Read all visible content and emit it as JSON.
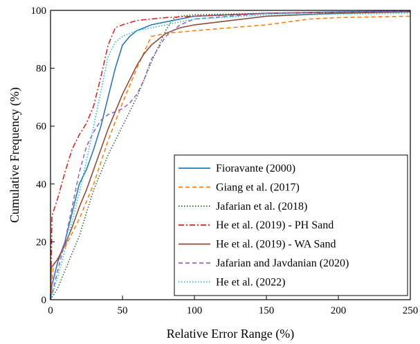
{
  "chart_data": {
    "type": "line",
    "title": "",
    "xlabel": "Relative Error Range (%)",
    "ylabel": "Cumulative Frequency (%)",
    "xlim": [
      0,
      250
    ],
    "ylim": [
      0,
      100
    ],
    "xticks": [
      "0",
      "50",
      "100",
      "150",
      "200",
      "250"
    ],
    "yticks": [
      "0",
      "20",
      "40",
      "60",
      "80",
      "100"
    ],
    "grid": false,
    "legend_position": "bottom-right",
    "series": [
      {
        "name": "Fioravante (2000)",
        "color": "#2e75b6",
        "dash": "solid",
        "points": [
          [
            0,
            0
          ],
          [
            1,
            5
          ],
          [
            5,
            13
          ],
          [
            10,
            20
          ],
          [
            15,
            30
          ],
          [
            20,
            40
          ],
          [
            25,
            45
          ],
          [
            30,
            52
          ],
          [
            35,
            60
          ],
          [
            40,
            70
          ],
          [
            45,
            80
          ],
          [
            50,
            88
          ],
          [
            55,
            91
          ],
          [
            60,
            93
          ],
          [
            65,
            94
          ],
          [
            70,
            95
          ],
          [
            80,
            96
          ],
          [
            100,
            98
          ],
          [
            150,
            99
          ],
          [
            200,
            99.5
          ],
          [
            250,
            99.8
          ]
        ]
      },
      {
        "name": "Giang et al. (2017)",
        "color": "#ff7f0e",
        "dash": "dashed",
        "points": [
          [
            0,
            0
          ],
          [
            2,
            12
          ],
          [
            10,
            18
          ],
          [
            20,
            28
          ],
          [
            30,
            40
          ],
          [
            40,
            55
          ],
          [
            50,
            68
          ],
          [
            60,
            80
          ],
          [
            70,
            91
          ],
          [
            80,
            92
          ],
          [
            100,
            93
          ],
          [
            150,
            95
          ],
          [
            180,
            97
          ],
          [
            200,
            97.5
          ],
          [
            250,
            98
          ]
        ]
      },
      {
        "name": "Jafarian et al. (2018)",
        "color": "#2e6b30",
        "dash": "dotted",
        "points": [
          [
            0,
            0
          ],
          [
            5,
            4
          ],
          [
            10,
            10
          ],
          [
            20,
            22
          ],
          [
            30,
            38
          ],
          [
            40,
            50
          ],
          [
            50,
            60
          ],
          [
            60,
            70
          ],
          [
            70,
            82
          ],
          [
            80,
            93
          ],
          [
            85,
            97
          ],
          [
            90,
            98
          ],
          [
            100,
            98.5
          ],
          [
            150,
            99
          ],
          [
            250,
            99.5
          ]
        ]
      },
      {
        "name": "He et al. (2019) - PH Sand",
        "color": "#d62728",
        "dash": "dashdot",
        "points": [
          [
            0,
            0
          ],
          [
            1,
            29
          ],
          [
            5,
            35
          ],
          [
            10,
            44
          ],
          [
            15,
            52
          ],
          [
            20,
            57
          ],
          [
            25,
            61
          ],
          [
            30,
            67
          ],
          [
            35,
            77
          ],
          [
            40,
            88
          ],
          [
            45,
            94
          ],
          [
            50,
            95
          ],
          [
            60,
            96.5
          ],
          [
            80,
            97.5
          ],
          [
            100,
            98
          ],
          [
            150,
            99
          ],
          [
            250,
            99.5
          ]
        ]
      },
      {
        "name": "He et al. (2019) - WA Sand",
        "color": "#8b4c3c",
        "dash": "solid",
        "points": [
          [
            0,
            0
          ],
          [
            0.5,
            11
          ],
          [
            5,
            14
          ],
          [
            10,
            19
          ],
          [
            15,
            25
          ],
          [
            20,
            32
          ],
          [
            25,
            38
          ],
          [
            30,
            45
          ],
          [
            35,
            52
          ],
          [
            40,
            59
          ],
          [
            45,
            65
          ],
          [
            50,
            71
          ],
          [
            55,
            76
          ],
          [
            60,
            81
          ],
          [
            65,
            85
          ],
          [
            70,
            88
          ],
          [
            80,
            92
          ],
          [
            90,
            94
          ],
          [
            100,
            95
          ],
          [
            150,
            98
          ],
          [
            200,
            99
          ],
          [
            250,
            99.5
          ]
        ]
      },
      {
        "name": "Jafarian and Javdanian (2020)",
        "color": "#9467bd",
        "dash": "dashed",
        "points": [
          [
            0,
            0
          ],
          [
            5,
            10
          ],
          [
            10,
            20
          ],
          [
            15,
            32
          ],
          [
            20,
            44
          ],
          [
            25,
            53
          ],
          [
            30,
            58
          ],
          [
            35,
            62
          ],
          [
            40,
            64
          ],
          [
            45,
            65
          ],
          [
            50,
            66
          ],
          [
            55,
            68
          ],
          [
            60,
            71
          ],
          [
            65,
            76
          ],
          [
            70,
            83
          ],
          [
            80,
            91
          ],
          [
            90,
            95
          ],
          [
            100,
            97
          ],
          [
            150,
            99
          ],
          [
            250,
            99.8
          ]
        ]
      },
      {
        "name": "He et al. (2022)",
        "color": "#17becf",
        "dash": "dotted",
        "points": [
          [
            0,
            0
          ],
          [
            2,
            3
          ],
          [
            5,
            8
          ],
          [
            10,
            17
          ],
          [
            15,
            27
          ],
          [
            20,
            37
          ],
          [
            25,
            48
          ],
          [
            30,
            60
          ],
          [
            35,
            72
          ],
          [
            40,
            84
          ],
          [
            45,
            89
          ],
          [
            50,
            91
          ],
          [
            60,
            93
          ],
          [
            70,
            94
          ],
          [
            80,
            95
          ],
          [
            100,
            97
          ],
          [
            150,
            98.5
          ],
          [
            250,
            99
          ]
        ]
      }
    ]
  }
}
